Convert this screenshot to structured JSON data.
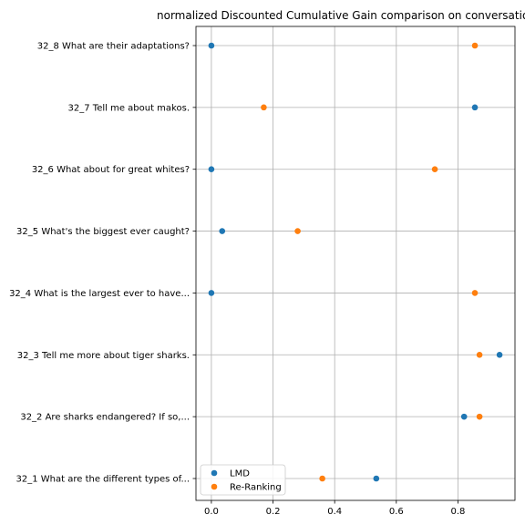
{
  "chart_data": {
    "type": "scatter",
    "title": "normalized Discounted Cumulative Gain comparison on conversation",
    "xlabel": "",
    "ylabel": "",
    "xlim": [
      -0.05,
      0.985
    ],
    "xticks": [
      0.0,
      0.2,
      0.4,
      0.6,
      0.8
    ],
    "xtick_labels": [
      "0.0",
      "0.2",
      "0.4",
      "0.6",
      "0.8"
    ],
    "grid": true,
    "legend_position": "lower-left",
    "categories": [
      "32_1 What are the different types of...",
      "32_2 Are sharks endangered? If so,...",
      "32_3 Tell me more about tiger sharks.",
      "32_4 What is the largest ever to have...",
      "32_5 What's the biggest ever caught?",
      "32_6 What about for great whites?",
      "32_7 Tell me about makos.",
      "32_8 What are their adaptations?"
    ],
    "series": [
      {
        "name": "LMD",
        "color": "#1f77b4",
        "values": [
          0.535,
          0.82,
          0.935,
          0.0,
          0.035,
          0.0,
          0.855,
          0.0
        ]
      },
      {
        "name": "Re-Ranking",
        "color": "#ff7f0e",
        "values": [
          0.36,
          0.87,
          0.87,
          0.855,
          0.28,
          0.725,
          0.17,
          0.855
        ]
      }
    ]
  }
}
